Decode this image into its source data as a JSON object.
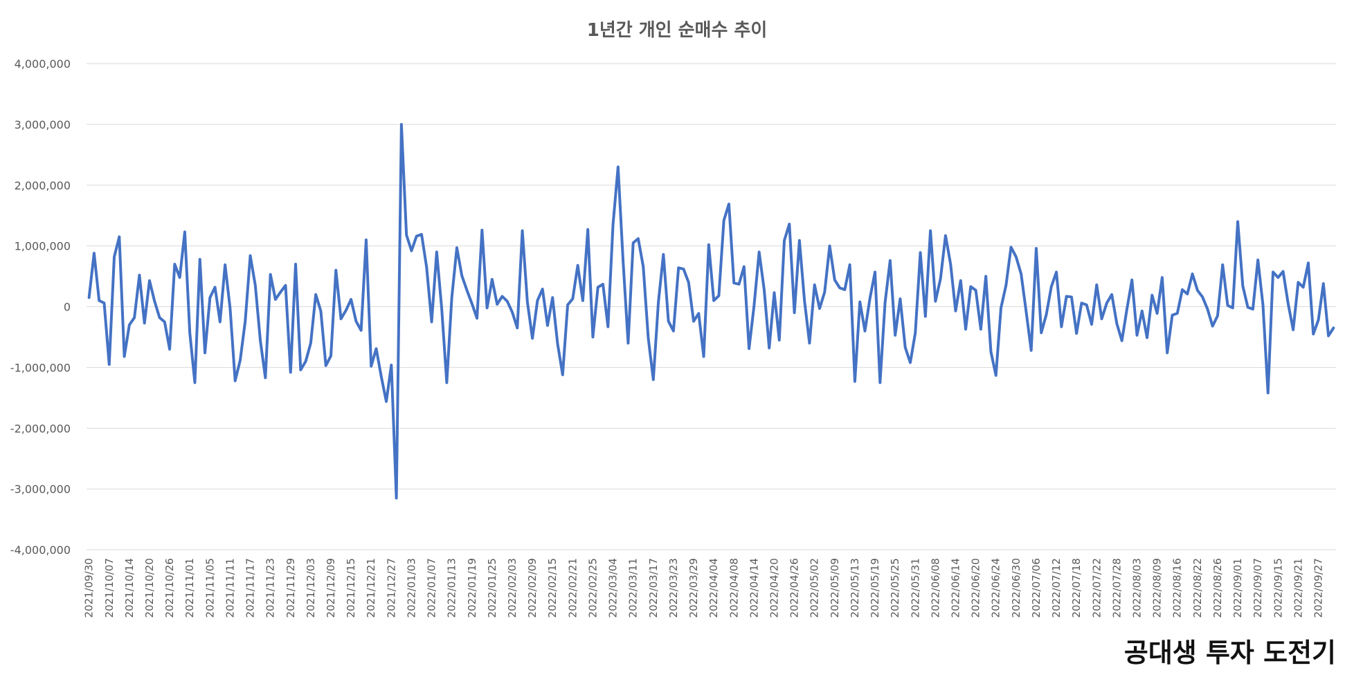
{
  "chart_data": {
    "type": "line",
    "title": "1년간 개인 순매수 추이",
    "xlabel": "",
    "ylabel": "",
    "ylim": [
      -4000000,
      4000000
    ],
    "y_ticks": [
      4000000,
      3000000,
      2000000,
      1000000,
      0,
      -1000000,
      -2000000,
      -3000000,
      -4000000
    ],
    "y_tick_labels": [
      "4,000,000",
      "3,000,000",
      "2,000,000",
      "1,000,000",
      "0",
      "-1,000,000",
      "-2,000,000",
      "-3,000,000",
      "-4,000,000"
    ],
    "x_tick_labels": [
      "2021/09/30",
      "2021/10/07",
      "2021/10/14",
      "2021/10/20",
      "2021/10/26",
      "2021/11/01",
      "2021/11/05",
      "2021/11/11",
      "2021/11/17",
      "2021/11/23",
      "2021/11/29",
      "2021/12/03",
      "2021/12/09",
      "2021/12/15",
      "2021/12/21",
      "2021/12/27",
      "2022/01/03",
      "2022/01/07",
      "2022/01/13",
      "2022/01/19",
      "2022/01/25",
      "2022/02/03",
      "2022/02/09",
      "2022/02/15",
      "2022/02/21",
      "2022/02/25",
      "2022/03/04",
      "2022/03/11",
      "2022/03/17",
      "2022/03/23",
      "2022/03/29",
      "2022/04/04",
      "2022/04/08",
      "2022/04/14",
      "2022/04/20",
      "2022/04/26",
      "2022/05/02",
      "2022/05/09",
      "2022/05/13",
      "2022/05/19",
      "2022/05/25",
      "2022/05/31",
      "2022/06/08",
      "2022/06/14",
      "2022/06/20",
      "2022/06/24",
      "2022/06/30",
      "2022/07/06",
      "2022/07/12",
      "2022/07/18",
      "2022/07/22",
      "2022/07/28",
      "2022/08/03",
      "2022/08/09",
      "2022/08/16",
      "2022/08/22",
      "2022/08/26",
      "2022/09/01",
      "2022/09/07",
      "2022/09/15",
      "2022/09/21",
      "2022/09/27"
    ],
    "tick_every": 4,
    "grid": true,
    "legend": "none",
    "series": [
      {
        "color": "#4472C4",
        "values": [
          150000,
          880000,
          100000,
          60000,
          -950000,
          820000,
          1150000,
          -820000,
          -300000,
          -180000,
          520000,
          -270000,
          430000,
          90000,
          -180000,
          -250000,
          -700000,
          700000,
          480000,
          1230000,
          -430000,
          -1250000,
          780000,
          -760000,
          150000,
          320000,
          -250000,
          690000,
          -30000,
          -1220000,
          -880000,
          -240000,
          840000,
          350000,
          -560000,
          -1170000,
          530000,
          120000,
          240000,
          350000,
          -1080000,
          700000,
          -1040000,
          -900000,
          -600000,
          200000,
          -70000,
          -970000,
          -810000,
          600000,
          -200000,
          -60000,
          120000,
          -240000,
          -390000,
          1100000,
          -980000,
          -690000,
          -1150000,
          -1560000,
          -960000,
          -3150000,
          3000000,
          1180000,
          920000,
          1160000,
          1190000,
          650000,
          -250000,
          900000,
          -30000,
          -1250000,
          150000,
          970000,
          510000,
          270000,
          50000,
          -190000,
          1260000,
          -20000,
          450000,
          40000,
          170000,
          90000,
          -90000,
          -350000,
          1250000,
          80000,
          -520000,
          100000,
          290000,
          -310000,
          150000,
          -610000,
          -1120000,
          30000,
          130000,
          680000,
          100000,
          1270000,
          -500000,
          320000,
          370000,
          -330000,
          1350000,
          2300000,
          750000,
          -600000,
          1050000,
          1120000,
          660000,
          -520000,
          -1200000,
          70000,
          860000,
          -240000,
          -400000,
          640000,
          620000,
          400000,
          -240000,
          -110000,
          -820000,
          1020000,
          100000,
          180000,
          1420000,
          1690000,
          390000,
          370000,
          660000,
          -690000,
          20000,
          900000,
          280000,
          -680000,
          230000,
          -550000,
          1090000,
          1360000,
          -100000,
          1090000,
          100000,
          -600000,
          360000,
          -30000,
          240000,
          1000000,
          440000,
          310000,
          280000,
          690000,
          -1230000,
          80000,
          -400000,
          140000,
          570000,
          -1250000,
          70000,
          760000,
          -470000,
          130000,
          -670000,
          -920000,
          -430000,
          890000,
          -160000,
          1250000,
          90000,
          460000,
          1170000,
          700000,
          -70000,
          430000,
          -370000,
          330000,
          270000,
          -370000,
          500000,
          -740000,
          -1130000,
          -20000,
          350000,
          980000,
          820000,
          540000,
          -80000,
          -720000,
          960000,
          -430000,
          -130000,
          330000,
          570000,
          -330000,
          170000,
          160000,
          -440000,
          60000,
          30000,
          -290000,
          360000,
          -200000,
          60000,
          200000,
          -280000,
          -560000,
          -40000,
          440000,
          -470000,
          -70000,
          -510000,
          190000,
          -110000,
          480000,
          -760000,
          -140000,
          -110000,
          280000,
          210000,
          540000,
          270000,
          160000,
          -40000,
          -320000,
          -150000,
          690000,
          20000,
          -20000,
          1400000,
          340000,
          -10000,
          -40000,
          770000,
          30000,
          -1420000,
          570000,
          480000,
          580000,
          50000,
          -380000,
          400000,
          320000,
          720000,
          -450000,
          -220000,
          380000,
          -480000,
          -350000
        ]
      }
    ]
  },
  "highlight": {
    "color": "#ED7D31",
    "start_index": 251,
    "end_index": 261
  },
  "watermark": {
    "text": "공대생 투자 도전기"
  }
}
